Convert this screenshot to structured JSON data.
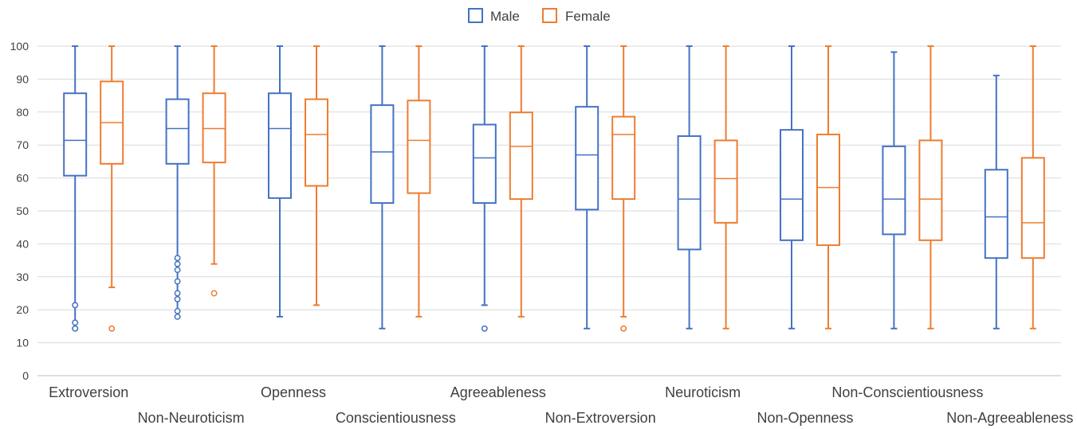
{
  "chart_data": {
    "type": "box",
    "title": "",
    "xlabel": "",
    "ylabel": "",
    "ylim": [
      0,
      100
    ],
    "yticks": [
      0,
      10,
      20,
      30,
      40,
      50,
      60,
      70,
      80,
      90,
      100
    ],
    "grid": true,
    "legend_position": "top-center",
    "categories": [
      "Extroversion",
      "Non-Neuroticism",
      "Openness",
      "Conscientiousness",
      "Agreeableness",
      "Non-Extroversion",
      "Neuroticism",
      "Non-Openness",
      "Non-Conscientiousness",
      "Non-Agreeableness"
    ],
    "series": [
      {
        "name": "Male",
        "color": "#4472C4",
        "boxes": [
          {
            "min": 14.3,
            "q1": 60.7,
            "median": 71.4,
            "q3": 85.7,
            "max": 100,
            "outliers": [
              21.4,
              16.1,
              14.3
            ]
          },
          {
            "min": 17.9,
            "q1": 64.3,
            "median": 75.0,
            "q3": 83.9,
            "max": 100,
            "outliers": [
              35.7,
              33.9,
              32.1,
              28.6,
              25.0,
              23.2,
              19.6,
              17.9
            ]
          },
          {
            "min": 17.9,
            "q1": 53.9,
            "median": 75.0,
            "q3": 85.7,
            "max": 100,
            "outliers": []
          },
          {
            "min": 14.3,
            "q1": 52.4,
            "median": 67.9,
            "q3": 82.1,
            "max": 100,
            "outliers": []
          },
          {
            "min": 21.4,
            "q1": 52.4,
            "median": 66.1,
            "q3": 76.2,
            "max": 100,
            "outliers": [
              14.3
            ]
          },
          {
            "min": 14.3,
            "q1": 50.4,
            "median": 67.0,
            "q3": 81.6,
            "max": 100,
            "outliers": []
          },
          {
            "min": 14.3,
            "q1": 38.3,
            "median": 53.6,
            "q3": 72.7,
            "max": 100,
            "outliers": []
          },
          {
            "min": 14.3,
            "q1": 41.1,
            "median": 53.6,
            "q3": 74.6,
            "max": 100,
            "outliers": []
          },
          {
            "min": 14.3,
            "q1": 42.9,
            "median": 53.6,
            "q3": 69.6,
            "max": 98.2,
            "outliers": []
          },
          {
            "min": 14.3,
            "q1": 35.7,
            "median": 48.2,
            "q3": 62.5,
            "max": 91.1,
            "outliers": []
          }
        ]
      },
      {
        "name": "Female",
        "color": "#ED7D31",
        "boxes": [
          {
            "min": 26.8,
            "q1": 64.3,
            "median": 76.8,
            "q3": 89.3,
            "max": 100,
            "outliers": [
              14.3
            ]
          },
          {
            "min": 33.9,
            "q1": 64.7,
            "median": 75.0,
            "q3": 85.7,
            "max": 100,
            "outliers": [
              25.0
            ]
          },
          {
            "min": 21.4,
            "q1": 57.6,
            "median": 73.2,
            "q3": 83.9,
            "max": 100,
            "outliers": []
          },
          {
            "min": 17.9,
            "q1": 55.4,
            "median": 71.4,
            "q3": 83.5,
            "max": 100,
            "outliers": []
          },
          {
            "min": 17.9,
            "q1": 53.6,
            "median": 69.6,
            "q3": 79.9,
            "max": 100,
            "outliers": []
          },
          {
            "min": 17.9,
            "q1": 53.6,
            "median": 73.2,
            "q3": 78.6,
            "max": 100,
            "outliers": [
              14.3
            ]
          },
          {
            "min": 14.3,
            "q1": 46.4,
            "median": 59.8,
            "q3": 71.4,
            "max": 100,
            "outliers": []
          },
          {
            "min": 14.3,
            "q1": 39.6,
            "median": 57.1,
            "q3": 73.2,
            "max": 100,
            "outliers": []
          },
          {
            "min": 14.3,
            "q1": 41.1,
            "median": 53.6,
            "q3": 71.4,
            "max": 100,
            "outliers": []
          },
          {
            "min": 14.3,
            "q1": 35.7,
            "median": 46.4,
            "q3": 66.1,
            "max": 100,
            "outliers": []
          }
        ]
      }
    ]
  }
}
